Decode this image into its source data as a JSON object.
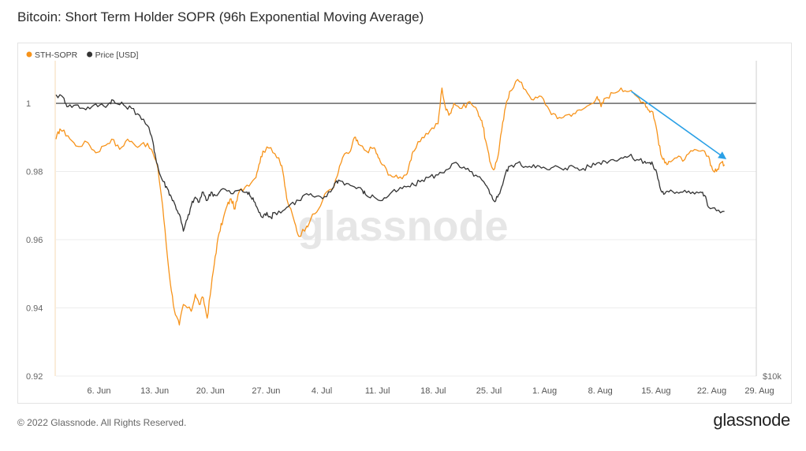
{
  "title": "Bitcoin: Short Term Holder SOPR (96h Exponential Moving Average)",
  "footer": {
    "copyright": "© 2022 Glassnode. All Rights Reserved.",
    "brand": "glassnode"
  },
  "watermark": "glassnode",
  "colors": {
    "sopr": "#f7931a",
    "price": "#333333",
    "arrow": "#2aa0e6",
    "reference": "#333333"
  },
  "chart_data": {
    "type": "line",
    "legend": {
      "placement": "top-left",
      "entries": [
        "STH-SOPR",
        "Price [USD]"
      ]
    },
    "y_left": {
      "range": [
        0.92,
        1.0125
      ],
      "ticks": [
        {
          "v": 1,
          "label": "1"
        },
        {
          "v": 0.98,
          "label": "0.98"
        },
        {
          "v": 0.96,
          "label": "0.96"
        },
        {
          "v": 0.94,
          "label": "0.94"
        },
        {
          "v": 0.92,
          "label": "0.92"
        }
      ]
    },
    "y_right": {
      "label": "$10k"
    },
    "x_axis": {
      "range": [
        0,
        88
      ],
      "ticks": [
        {
          "d": 5.4,
          "label": "6. Jun"
        },
        {
          "d": 12.4,
          "label": "13. Jun"
        },
        {
          "d": 19.4,
          "label": "20. Jun"
        },
        {
          "d": 26.4,
          "label": "27. Jun"
        },
        {
          "d": 33.4,
          "label": "4. Jul"
        },
        {
          "d": 40.4,
          "label": "11. Jul"
        },
        {
          "d": 47.4,
          "label": "18. Jul"
        },
        {
          "d": 54.4,
          "label": "25. Jul"
        },
        {
          "d": 61.4,
          "label": "1. Aug"
        },
        {
          "d": 68.4,
          "label": "8. Aug"
        },
        {
          "d": 75.4,
          "label": "15. Aug"
        },
        {
          "d": 82.4,
          "label": "22. Aug"
        },
        {
          "d": 88.4,
          "label": "29. Aug"
        }
      ]
    },
    "reference_line": 1,
    "series": [
      {
        "name": "STH-SOPR",
        "axis": "left",
        "points": [
          [
            0,
            0.9895
          ],
          [
            0.5,
            0.9925
          ],
          [
            1.5,
            0.9905
          ],
          [
            2.5,
            0.9875
          ],
          [
            4,
            0.9885
          ],
          [
            5,
            0.9855
          ],
          [
            6,
            0.9875
          ],
          [
            7,
            0.9895
          ],
          [
            8,
            0.9865
          ],
          [
            9,
            0.9895
          ],
          [
            10,
            0.9875
          ],
          [
            11,
            0.9885
          ],
          [
            12,
            0.9865
          ],
          [
            12.8,
            0.981
          ],
          [
            13.4,
            0.97
          ],
          [
            14,
            0.955
          ],
          [
            14.5,
            0.945
          ],
          [
            15,
            0.938
          ],
          [
            15.5,
            0.935
          ],
          [
            16,
            0.941
          ],
          [
            17,
            0.939
          ],
          [
            17.5,
            0.944
          ],
          [
            18,
            0.941
          ],
          [
            18.5,
            0.943
          ],
          [
            19,
            0.937
          ],
          [
            19.5,
            0.946
          ],
          [
            20,
            0.955
          ],
          [
            20.5,
            0.962
          ],
          [
            21,
            0.966
          ],
          [
            21.5,
            0.97
          ],
          [
            22,
            0.972
          ],
          [
            22.5,
            0.969
          ],
          [
            23,
            0.974
          ],
          [
            24,
            0.976
          ],
          [
            25,
            0.978
          ],
          [
            25.5,
            0.982
          ],
          [
            26,
            0.986
          ],
          [
            27,
            0.987
          ],
          [
            28,
            0.984
          ],
          [
            28.5,
            0.98
          ],
          [
            29,
            0.972
          ],
          [
            30,
            0.965
          ],
          [
            30.5,
            0.961
          ],
          [
            31.5,
            0.964
          ],
          [
            32,
            0.966
          ],
          [
            33,
            0.969
          ],
          [
            34,
            0.974
          ],
          [
            35,
            0.976
          ],
          [
            35.5,
            0.98
          ],
          [
            36,
            0.984
          ],
          [
            37,
            0.986
          ],
          [
            37.5,
            0.99
          ],
          [
            38,
            0.988
          ],
          [
            39,
            0.986
          ],
          [
            40,
            0.987
          ],
          [
            40.5,
            0.984
          ],
          [
            41,
            0.982
          ],
          [
            42,
            0.979
          ],
          [
            43,
            0.978
          ],
          [
            44,
            0.979
          ],
          [
            44.5,
            0.983
          ],
          [
            45,
            0.986
          ],
          [
            46,
            0.99
          ],
          [
            47,
            0.992
          ],
          [
            48,
            0.994
          ],
          [
            48.5,
            1.0045
          ],
          [
            49,
            0.998
          ],
          [
            49.5,
            0.997
          ],
          [
            50,
            1.0
          ],
          [
            51,
            0.9985
          ],
          [
            52,
            1.0005
          ],
          [
            53,
            0.9975
          ],
          [
            53.5,
            0.995
          ],
          [
            54,
            0.989
          ],
          [
            54.5,
            0.983
          ],
          [
            55,
            0.9805
          ],
          [
            55.5,
            0.984
          ],
          [
            56,
            0.992
          ],
          [
            56.5,
            0.999
          ],
          [
            57,
            1.0035
          ],
          [
            58,
            1.007
          ],
          [
            59,
            1.004
          ],
          [
            60,
            1.001
          ],
          [
            61,
            1.002
          ],
          [
            62,
            0.998
          ],
          [
            63,
            0.9955
          ],
          [
            64,
            0.9965
          ],
          [
            65,
            0.997
          ],
          [
            66,
            0.998
          ],
          [
            67,
            0.9995
          ],
          [
            68,
            1.002
          ],
          [
            68.5,
            0.999
          ],
          [
            69,
            1.0015
          ],
          [
            70,
            1.003
          ],
          [
            71,
            1.0045
          ],
          [
            72,
            1.0035
          ],
          [
            73,
            1.002
          ],
          [
            74,
            1.0
          ],
          [
            74.5,
            0.998
          ],
          [
            75,
            0.9975
          ],
          [
            75.5,
            0.992
          ],
          [
            76,
            0.985
          ],
          [
            76.5,
            0.9825
          ],
          [
            77,
            0.983
          ],
          [
            78,
            0.984
          ],
          [
            79,
            0.9835
          ],
          [
            80,
            0.986
          ],
          [
            81,
            0.986
          ],
          [
            82,
            0.9845
          ],
          [
            82.5,
            0.9805
          ],
          [
            83,
            0.98
          ],
          [
            83.5,
            0.9825
          ],
          [
            84,
            0.982
          ]
        ]
      },
      {
        "name": "Price [USD]",
        "axis": "right",
        "points": [
          [
            0,
            1.0025
          ],
          [
            1,
            1.0015
          ],
          [
            1.5,
            0.999
          ],
          [
            2.5,
            0.9995
          ],
          [
            3.5,
            0.9985
          ],
          [
            4.5,
            0.999
          ],
          [
            5.5,
            0.9995
          ],
          [
            6.5,
            0.9995
          ],
          [
            7,
            1.001
          ],
          [
            7.5,
            1.0
          ],
          [
            8.5,
            0.9995
          ],
          [
            9.5,
            0.9985
          ],
          [
            10.5,
            0.9965
          ],
          [
            11.5,
            0.9935
          ],
          [
            12.2,
            0.9885
          ],
          [
            12.5,
            0.9845
          ],
          [
            13,
            0.9795
          ],
          [
            13.5,
            0.977
          ],
          [
            14,
            0.975
          ],
          [
            14.5,
            0.9725
          ],
          [
            15,
            0.97
          ],
          [
            15.5,
            0.9675
          ],
          [
            16,
            0.9625
          ],
          [
            16.5,
            0.966
          ],
          [
            17,
            0.97
          ],
          [
            17.5,
            0.9725
          ],
          [
            18,
            0.971
          ],
          [
            18.5,
            0.974
          ],
          [
            19,
            0.9715
          ],
          [
            19.5,
            0.974
          ],
          [
            20,
            0.973
          ],
          [
            21,
            0.975
          ],
          [
            22,
            0.9735
          ],
          [
            23,
            0.9745
          ],
          [
            24,
            0.974
          ],
          [
            24.5,
            0.9725
          ],
          [
            25,
            0.971
          ],
          [
            25.5,
            0.968
          ],
          [
            26,
            0.9665
          ],
          [
            26.5,
            0.968
          ],
          [
            27,
            0.9665
          ],
          [
            27.5,
            0.968
          ],
          [
            28.5,
            0.9685
          ],
          [
            29.5,
            0.9705
          ],
          [
            30.5,
            0.9715
          ],
          [
            31.5,
            0.9735
          ],
          [
            32.5,
            0.9725
          ],
          [
            33.5,
            0.972
          ],
          [
            34.5,
            0.974
          ],
          [
            35,
            0.9765
          ],
          [
            35.5,
            0.9775
          ],
          [
            36.5,
            0.9765
          ],
          [
            37.5,
            0.9755
          ],
          [
            38.5,
            0.9745
          ],
          [
            39,
            0.973
          ],
          [
            40,
            0.9725
          ],
          [
            41,
            0.9715
          ],
          [
            42,
            0.9735
          ],
          [
            43,
            0.9745
          ],
          [
            44,
            0.9755
          ],
          [
            45,
            0.976
          ],
          [
            46,
            0.9775
          ],
          [
            47,
            0.9785
          ],
          [
            48,
            0.979
          ],
          [
            49,
            0.9805
          ],
          [
            50,
            0.9825
          ],
          [
            51,
            0.981
          ],
          [
            52,
            0.98
          ],
          [
            53,
            0.9785
          ],
          [
            54,
            0.976
          ],
          [
            54.5,
            0.9735
          ],
          [
            55,
            0.9715
          ],
          [
            55.5,
            0.9725
          ],
          [
            56,
            0.9755
          ],
          [
            56.5,
            0.9795
          ],
          [
            57,
            0.9815
          ],
          [
            58,
            0.9825
          ],
          [
            59,
            0.9815
          ],
          [
            60,
            0.982
          ],
          [
            61,
            0.981
          ],
          [
            62,
            0.9805
          ],
          [
            63,
            0.9815
          ],
          [
            64,
            0.981
          ],
          [
            65,
            0.9815
          ],
          [
            66,
            0.9805
          ],
          [
            67,
            0.9815
          ],
          [
            68,
            0.9825
          ],
          [
            69,
            0.983
          ],
          [
            70,
            0.9835
          ],
          [
            71,
            0.984
          ],
          [
            72,
            0.9845
          ],
          [
            73,
            0.9835
          ],
          [
            74,
            0.983
          ],
          [
            74.5,
            0.9825
          ],
          [
            75,
            0.982
          ],
          [
            75.5,
            0.9795
          ],
          [
            76,
            0.9745
          ],
          [
            76.5,
            0.9735
          ],
          [
            77,
            0.974
          ],
          [
            78,
            0.974
          ],
          [
            79,
            0.9745
          ],
          [
            80,
            0.974
          ],
          [
            81,
            0.974
          ],
          [
            81.5,
            0.973
          ],
          [
            82,
            0.9695
          ],
          [
            83,
            0.9685
          ],
          [
            84,
            0.9683
          ]
        ]
      }
    ],
    "annotation": {
      "type": "arrow",
      "from": [
        72.3,
        1.0035
      ],
      "to": [
        84,
        0.984
      ]
    }
  }
}
